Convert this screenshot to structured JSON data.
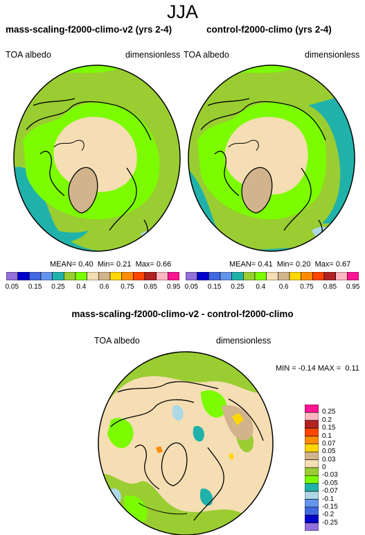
{
  "title": "JJA",
  "colors": {
    "palette": [
      "#9370db",
      "#0000cd",
      "#4169e1",
      "#6495ed",
      "#20b2aa",
      "#9acd32",
      "#7cfc00",
      "#f5deb3",
      "#d2b48c",
      "#ffd700",
      "#ff8c00",
      "#ff4500",
      "#b22222",
      "#ffb6c1",
      "#ff1493"
    ],
    "diff_palette": [
      "#9370db",
      "#0000cd",
      "#4169e1",
      "#6495ed",
      "#add8e6",
      "#20b2aa",
      "#7cfc00",
      "#9acd32",
      "#f5deb3",
      "#d2b48c",
      "#ffd700",
      "#ff8c00",
      "#ff4500",
      "#b22222",
      "#ffb6c1",
      "#ff1493"
    ],
    "land_outline": "#000000"
  },
  "panels": [
    {
      "title": "mass-scaling-f2000-climo-v2 (yrs 2-4)",
      "variable": "TOA albedo",
      "units": "dimensionless",
      "stats": {
        "mean_label": "MEAN=",
        "mean": "0.40",
        "min_label": "Min=",
        "min": "0.21",
        "max_label": "Max=",
        "max": "0.66"
      }
    },
    {
      "title": "control-f2000-climo (yrs 2-4)",
      "variable": "TOA albedo",
      "units": "dimensionless",
      "stats": {
        "mean_label": "MEAN=",
        "mean": "0.41",
        "min_label": "Min=",
        "min": "0.20",
        "max_label": "Max=",
        "max": "0.67"
      }
    }
  ],
  "colorbar_levels": [
    "0.05",
    "0.15",
    "0.25",
    "0.4",
    "0.6",
    "0.75",
    "0.85",
    "0.95"
  ],
  "diff_panel": {
    "title": "mass-scaling-f2000-climo-v2 - control-f2000-climo",
    "variable": "TOA albedo",
    "units": "dimensionless",
    "min_label": "MIN =",
    "min": "-0.14",
    "max_label": "MAX =",
    "max": "0.11",
    "levels": [
      "0.25",
      "0.2",
      "0.15",
      "0.1",
      "0.07",
      "0.05",
      "0.03",
      "0",
      "-0.03",
      "-0.05",
      "-0.07",
      "-0.1",
      "-0.15",
      "-0.2",
      "-0.25"
    ]
  }
}
